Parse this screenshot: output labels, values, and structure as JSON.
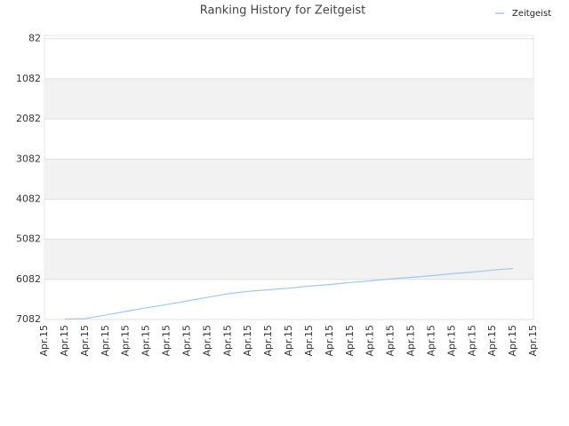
{
  "chart_data": {
    "type": "line",
    "title": "Ranking History for Zeitgeist",
    "categories": [
      "Apr.15",
      "Apr.15",
      "Apr.15",
      "Apr.15",
      "Apr.15",
      "Apr.15",
      "Apr.15",
      "Apr.15",
      "Apr.15",
      "Apr.15",
      "Apr.15",
      "Apr.15",
      "Apr.15",
      "Apr.15",
      "Apr.15",
      "Apr.15",
      "Apr.15",
      "Apr.15",
      "Apr.15",
      "Apr.15",
      "Apr.15",
      "Apr.15",
      "Apr.15",
      "Apr.15",
      "Apr.15"
    ],
    "series": [
      {
        "name": "Zeitgeist",
        "color": "#9fc9ef",
        "values": [
          null,
          7070,
          7060,
          6970,
          6880,
          6790,
          6710,
          6620,
          6530,
          6440,
          6380,
          6340,
          6300,
          6250,
          6210,
          6160,
          6120,
          6070,
          6030,
          5990,
          5940,
          5900,
          5850,
          5810,
          null
        ]
      }
    ],
    "ylim": [
      0,
      7082
    ],
    "y_inverted": true,
    "yticks": [
      82,
      1082,
      2082,
      3082,
      4082,
      5082,
      6082,
      7082
    ],
    "grid": true,
    "legend": "top-right"
  }
}
